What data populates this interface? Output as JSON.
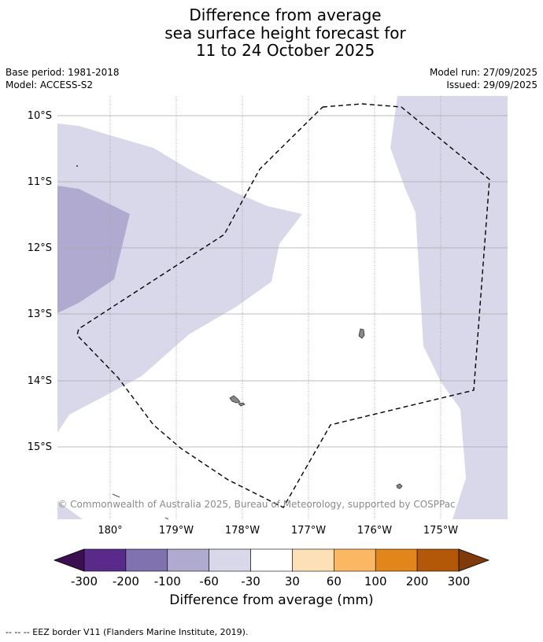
{
  "title": {
    "line1": "Difference from average",
    "line2": "sea surface height forecast for",
    "line3": "11 to 24 October 2025"
  },
  "meta": {
    "base_period": "Base period: 1981-2018",
    "model": "Model: ACCESS-S2",
    "model_run": "Model run: 27/09/2025",
    "issued": "Issued: 29/09/2025"
  },
  "map": {
    "lat_labels": [
      "10°S",
      "11°S",
      "12°S",
      "13°S",
      "14°S",
      "15°S"
    ],
    "lon_labels": [
      "180°",
      "179°W",
      "178°W",
      "177°W",
      "176°W",
      "175°W"
    ],
    "copyright": "© Commonwealth of Australia 2025, Bureau of Meteorology, supported by COSPPac"
  },
  "colorbar": {
    "ticks": [
      "-300",
      "-200",
      "-100",
      "-60",
      "-30",
      "30",
      "60",
      "100",
      "200",
      "300"
    ],
    "colors": [
      "#3b0f50",
      "#5a2a8a",
      "#8072ae",
      "#b0aad0",
      "#d8d8ea",
      "#ffffff",
      "#fde0b6",
      "#fbb761",
      "#e2851a",
      "#b35806",
      "#7f3b08"
    ],
    "label": "Difference from average (mm)"
  },
  "footnote": "--  --  -- EEZ border V11 (Flanders Marine Institute, 2019)."
}
